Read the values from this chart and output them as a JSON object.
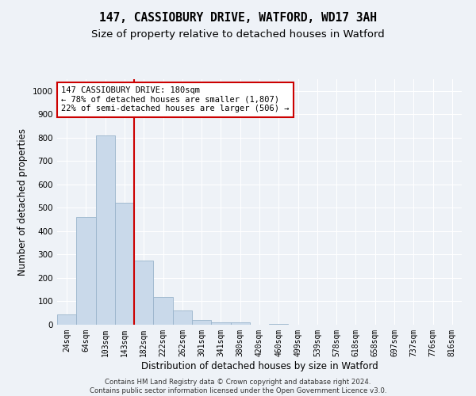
{
  "title": "147, CASSIOBURY DRIVE, WATFORD, WD17 3AH",
  "subtitle": "Size of property relative to detached houses in Watford",
  "xlabel": "Distribution of detached houses by size in Watford",
  "ylabel": "Number of detached properties",
  "bar_labels": [
    "24sqm",
    "64sqm",
    "103sqm",
    "143sqm",
    "182sqm",
    "222sqm",
    "262sqm",
    "301sqm",
    "341sqm",
    "380sqm",
    "420sqm",
    "460sqm",
    "499sqm",
    "539sqm",
    "578sqm",
    "618sqm",
    "658sqm",
    "697sqm",
    "737sqm",
    "776sqm",
    "816sqm"
  ],
  "bar_heights": [
    44,
    460,
    810,
    520,
    275,
    120,
    60,
    20,
    10,
    10,
    0,
    5,
    0,
    0,
    0,
    0,
    0,
    0,
    0,
    0,
    0
  ],
  "bar_color": "#c9d9ea",
  "bar_edge_color": "#9ab4cc",
  "vline_color": "#cc0000",
  "annotation_text": "147 CASSIOBURY DRIVE: 180sqm\n← 78% of detached houses are smaller (1,807)\n22% of semi-detached houses are larger (506) →",
  "annotation_box_color": "#ffffff",
  "annotation_box_edge": "#cc0000",
  "ylim": [
    0,
    1050
  ],
  "yticks": [
    0,
    100,
    200,
    300,
    400,
    500,
    600,
    700,
    800,
    900,
    1000
  ],
  "background_color": "#eef2f7",
  "footer_line1": "Contains HM Land Registry data © Crown copyright and database right 2024.",
  "footer_line2": "Contains public sector information licensed under the Open Government Licence v3.0.",
  "title_fontsize": 10.5,
  "subtitle_fontsize": 9.5,
  "xlabel_fontsize": 8.5,
  "ylabel_fontsize": 8.5
}
